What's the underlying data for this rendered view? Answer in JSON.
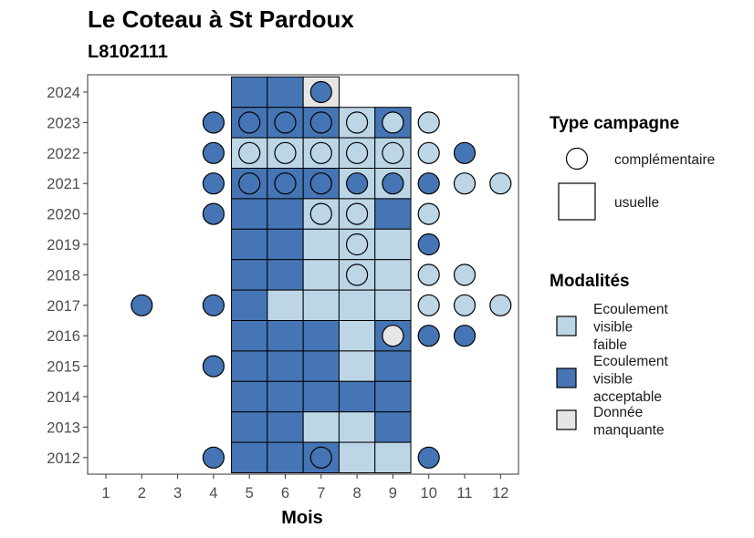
{
  "chart_data": {
    "type": "heatmap",
    "title": "Le Coteau à St Pardoux",
    "subtitle": "L8102111",
    "xlabel": "Mois",
    "ylabel": "",
    "x_ticks": [
      "1",
      "2",
      "3",
      "4",
      "5",
      "6",
      "7",
      "8",
      "9",
      "10",
      "11",
      "12"
    ],
    "y_ticks": [
      "2012",
      "2013",
      "2014",
      "2015",
      "2016",
      "2017",
      "2018",
      "2019",
      "2020",
      "2021",
      "2022",
      "2023",
      "2024"
    ],
    "grid": false,
    "legend_position": "right",
    "colors": {
      "faible": "#BCD6E6",
      "acceptable": "#4575B4",
      "manquante": "#E6E6E6"
    },
    "legend_type": {
      "title": "Type campagne",
      "items": [
        {
          "label": "complémentaire",
          "shape": "circle"
        },
        {
          "label": "usuelle",
          "shape": "square"
        }
      ]
    },
    "legend_modalites": {
      "title": "Modalités",
      "items": [
        {
          "key": "faible",
          "lines": [
            "Ecoulement",
            "visible",
            "faible"
          ]
        },
        {
          "key": "acceptable",
          "lines": [
            "Ecoulement",
            "visible",
            "acceptable"
          ]
        },
        {
          "key": "manquante",
          "lines": [
            "Donnée",
            "manquante"
          ]
        }
      ]
    },
    "usuelle": [
      {
        "year": 2024,
        "months": [
          5,
          6,
          7
        ],
        "values": [
          "acceptable",
          "acceptable",
          "manquante"
        ]
      },
      {
        "year": 2023,
        "months": [
          5,
          6,
          7,
          8,
          9
        ],
        "values": [
          "acceptable",
          "acceptable",
          "acceptable",
          "faible",
          "acceptable"
        ]
      },
      {
        "year": 2022,
        "months": [
          5,
          6,
          7,
          8,
          9
        ],
        "values": [
          "faible",
          "faible",
          "faible",
          "faible",
          "faible"
        ]
      },
      {
        "year": 2021,
        "months": [
          5,
          6,
          7,
          8,
          9
        ],
        "values": [
          "acceptable",
          "acceptable",
          "acceptable",
          "faible",
          "faible"
        ]
      },
      {
        "year": 2020,
        "months": [
          5,
          6,
          7,
          8,
          9
        ],
        "values": [
          "acceptable",
          "acceptable",
          "faible",
          "faible",
          "acceptable"
        ]
      },
      {
        "year": 2019,
        "months": [
          5,
          6,
          7,
          8,
          9
        ],
        "values": [
          "acceptable",
          "acceptable",
          "faible",
          "faible",
          "faible"
        ]
      },
      {
        "year": 2018,
        "months": [
          5,
          6,
          7,
          8,
          9
        ],
        "values": [
          "acceptable",
          "acceptable",
          "faible",
          "faible",
          "faible"
        ]
      },
      {
        "year": 2017,
        "months": [
          5,
          6,
          7,
          8,
          9
        ],
        "values": [
          "acceptable",
          "faible",
          "faible",
          "faible",
          "faible"
        ]
      },
      {
        "year": 2016,
        "months": [
          5,
          6,
          7,
          8,
          9
        ],
        "values": [
          "acceptable",
          "acceptable",
          "acceptable",
          "faible",
          "acceptable"
        ]
      },
      {
        "year": 2015,
        "months": [
          5,
          6,
          7,
          8,
          9
        ],
        "values": [
          "acceptable",
          "acceptable",
          "acceptable",
          "faible",
          "acceptable"
        ]
      },
      {
        "year": 2014,
        "months": [
          5,
          6,
          7,
          8,
          9
        ],
        "values": [
          "acceptable",
          "acceptable",
          "acceptable",
          "acceptable",
          "acceptable"
        ]
      },
      {
        "year": 2013,
        "months": [
          5,
          6,
          7,
          8,
          9
        ],
        "values": [
          "acceptable",
          "acceptable",
          "faible",
          "faible",
          "acceptable"
        ]
      },
      {
        "year": 2012,
        "months": [
          5,
          6,
          7,
          8,
          9
        ],
        "values": [
          "acceptable",
          "acceptable",
          "acceptable",
          "faible",
          "faible"
        ]
      }
    ],
    "complementaire": [
      {
        "year": 2024,
        "month": 7,
        "value": "acceptable"
      },
      {
        "year": 2023,
        "month": 4,
        "value": "acceptable"
      },
      {
        "year": 2023,
        "month": 5,
        "value": "acceptable"
      },
      {
        "year": 2023,
        "month": 6,
        "value": "acceptable"
      },
      {
        "year": 2023,
        "month": 7,
        "value": "acceptable"
      },
      {
        "year": 2023,
        "month": 8,
        "value": "faible"
      },
      {
        "year": 2023,
        "month": 9,
        "value": "faible"
      },
      {
        "year": 2023,
        "month": 10,
        "value": "faible"
      },
      {
        "year": 2022,
        "month": 4,
        "value": "acceptable"
      },
      {
        "year": 2022,
        "month": 5,
        "value": "faible"
      },
      {
        "year": 2022,
        "month": 6,
        "value": "faible"
      },
      {
        "year": 2022,
        "month": 7,
        "value": "faible"
      },
      {
        "year": 2022,
        "month": 8,
        "value": "faible"
      },
      {
        "year": 2022,
        "month": 9,
        "value": "faible"
      },
      {
        "year": 2022,
        "month": 10,
        "value": "faible"
      },
      {
        "year": 2022,
        "month": 11,
        "value": "acceptable"
      },
      {
        "year": 2021,
        "month": 4,
        "value": "acceptable"
      },
      {
        "year": 2021,
        "month": 5,
        "value": "acceptable"
      },
      {
        "year": 2021,
        "month": 6,
        "value": "acceptable"
      },
      {
        "year": 2021,
        "month": 7,
        "value": "acceptable"
      },
      {
        "year": 2021,
        "month": 8,
        "value": "acceptable"
      },
      {
        "year": 2021,
        "month": 9,
        "value": "acceptable"
      },
      {
        "year": 2021,
        "month": 10,
        "value": "acceptable"
      },
      {
        "year": 2021,
        "month": 11,
        "value": "faible"
      },
      {
        "year": 2021,
        "month": 12,
        "value": "faible"
      },
      {
        "year": 2020,
        "month": 4,
        "value": "acceptable"
      },
      {
        "year": 2020,
        "month": 7,
        "value": "faible"
      },
      {
        "year": 2020,
        "month": 8,
        "value": "faible"
      },
      {
        "year": 2020,
        "month": 10,
        "value": "faible"
      },
      {
        "year": 2019,
        "month": 8,
        "value": "faible"
      },
      {
        "year": 2019,
        "month": 10,
        "value": "acceptable"
      },
      {
        "year": 2018,
        "month": 8,
        "value": "faible"
      },
      {
        "year": 2018,
        "month": 10,
        "value": "faible"
      },
      {
        "year": 2018,
        "month": 11,
        "value": "faible"
      },
      {
        "year": 2017,
        "month": 2,
        "value": "acceptable"
      },
      {
        "year": 2017,
        "month": 4,
        "value": "acceptable"
      },
      {
        "year": 2017,
        "month": 10,
        "value": "faible"
      },
      {
        "year": 2017,
        "month": 11,
        "value": "faible"
      },
      {
        "year": 2017,
        "month": 12,
        "value": "faible"
      },
      {
        "year": 2016,
        "month": 9,
        "value": "manquante"
      },
      {
        "year": 2016,
        "month": 10,
        "value": "acceptable"
      },
      {
        "year": 2016,
        "month": 11,
        "value": "acceptable"
      },
      {
        "year": 2015,
        "month": 4,
        "value": "acceptable"
      },
      {
        "year": 2012,
        "month": 4,
        "value": "acceptable"
      },
      {
        "year": 2012,
        "month": 7,
        "value": "acceptable"
      },
      {
        "year": 2012,
        "month": 10,
        "value": "acceptable"
      }
    ]
  }
}
